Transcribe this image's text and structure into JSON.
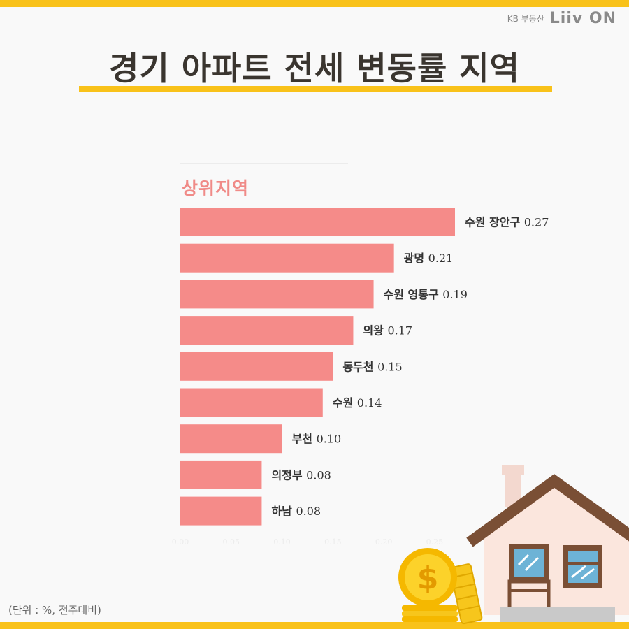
{
  "brand": {
    "text": "KB 부동산",
    "logo": "Liiv ON"
  },
  "title": "경기 아파트 전세 변동률 지역",
  "unit_note": "(단위 : %, 전주대비)",
  "colors": {
    "bar": "#f58b89",
    "accent": "#f9c21a",
    "title": "#3a352f"
  },
  "chart_data": {
    "type": "bar",
    "orientation": "horizontal",
    "title": "상위지역",
    "categories": [
      "수원 장안구",
      "광명",
      "수원 영통구",
      "의왕",
      "동두천",
      "수원",
      "부천",
      "의정부",
      "하남"
    ],
    "values": [
      0.27,
      0.21,
      0.19,
      0.17,
      0.15,
      0.14,
      0.1,
      0.08,
      0.08
    ],
    "value_labels": [
      "0.27",
      "0.21",
      "0.19",
      "0.17",
      "0.15",
      "0.14",
      "0.10",
      "0.08",
      "0.08"
    ],
    "xlim": [
      0,
      0.27
    ],
    "xticks": [
      "0.00",
      "0.05",
      "0.10",
      "0.15",
      "0.20",
      "0.25"
    ],
    "grid": false
  }
}
